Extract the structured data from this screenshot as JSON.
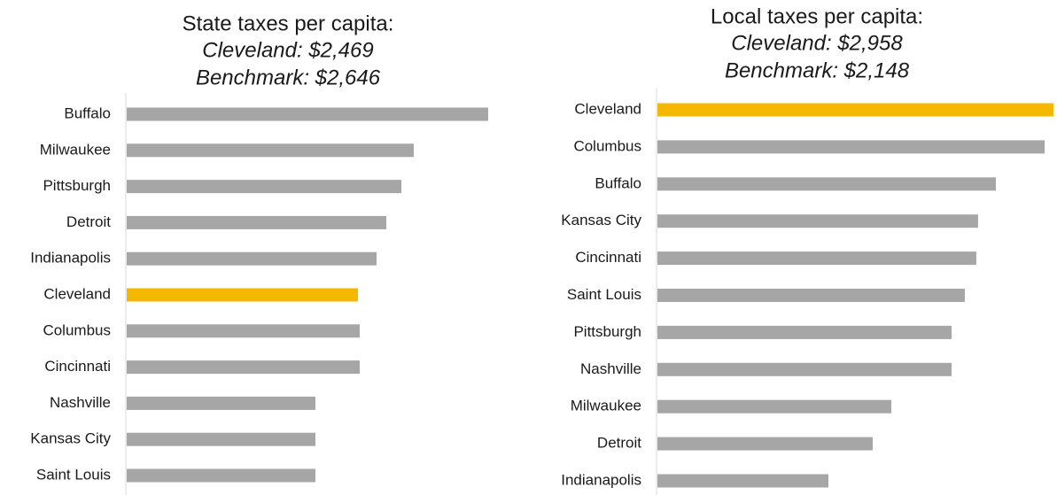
{
  "chart_data": [
    {
      "type": "bar",
      "orientation": "horizontal",
      "title": "State taxes per capita:",
      "subtitle": [
        "Cleveland: $2,469",
        "Benchmark: $2,646"
      ],
      "categories": [
        "Buffalo",
        "Milwaukee",
        "Pittsburgh",
        "Detroit",
        "Indianapolis",
        "Cleveland",
        "Columbus",
        "Cincinnati",
        "Nashville",
        "Kansas City",
        "Saint Louis"
      ],
      "values": [
        3860,
        3065,
        2933,
        2772,
        2668,
        2469,
        2488,
        2488,
        2015,
        2015,
        2015
      ],
      "colors": [
        "#a6a6a6",
        "#a6a6a6",
        "#a6a6a6",
        "#a6a6a6",
        "#a6a6a6",
        "#f5b800",
        "#a6a6a6",
        "#a6a6a6",
        "#a6a6a6",
        "#a6a6a6",
        "#a6a6a6"
      ]
    },
    {
      "type": "bar",
      "orientation": "horizontal",
      "title": "Local taxes per capita:",
      "subtitle": [
        "Cleveland: $2,958",
        "Benchmark: $2,148"
      ],
      "categories": [
        "Cleveland",
        "Columbus",
        "Buffalo",
        "Kansas City",
        "Cincinnati",
        "Saint Louis",
        "Pittsburgh",
        "Nashville",
        "Milwaukee",
        "Detroit",
        "Indianapolis"
      ],
      "values": [
        2958,
        2892,
        2528,
        2395,
        2382,
        2296,
        2197,
        2197,
        1747,
        1608,
        1277
      ],
      "colors": [
        "#f5b800",
        "#a6a6a6",
        "#a6a6a6",
        "#a6a6a6",
        "#a6a6a6",
        "#a6a6a6",
        "#a6a6a6",
        "#a6a6a6",
        "#a6a6a6",
        "#a6a6a6",
        "#a6a6a6"
      ]
    }
  ]
}
